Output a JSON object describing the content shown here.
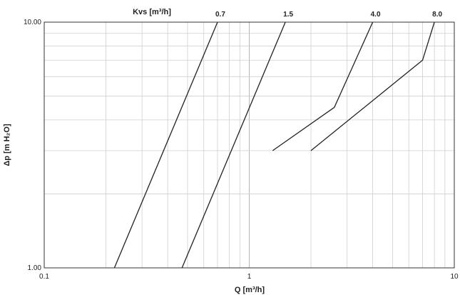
{
  "chart_data": {
    "type": "line",
    "title": "",
    "xlabel": "Q [m³/h]",
    "ylabel": "Δp [m H₂O]",
    "series_header": "Kvs [m³/h]",
    "xscale": "log",
    "yscale": "log",
    "xlim": [
      0.1,
      10
    ],
    "ylim": [
      1,
      10
    ],
    "x_ticks": [
      "0.1",
      "1",
      "10"
    ],
    "y_ticks": [
      "1.00",
      "10.00"
    ],
    "grid": true,
    "series": [
      {
        "name": "0.7",
        "points": [
          [
            0.22,
            1.0
          ],
          [
            0.7,
            10.0
          ]
        ]
      },
      {
        "name": "1.5",
        "points": [
          [
            0.47,
            1.0
          ],
          [
            1.5,
            10.0
          ]
        ]
      },
      {
        "name": "4.0",
        "points": [
          [
            1.3,
            3.0
          ],
          [
            2.6,
            4.5
          ],
          [
            4.0,
            10.0
          ]
        ]
      },
      {
        "name": "8.0",
        "points": [
          [
            2.0,
            3.0
          ],
          [
            7.0,
            7.0
          ],
          [
            8.0,
            10.0
          ]
        ]
      }
    ]
  }
}
